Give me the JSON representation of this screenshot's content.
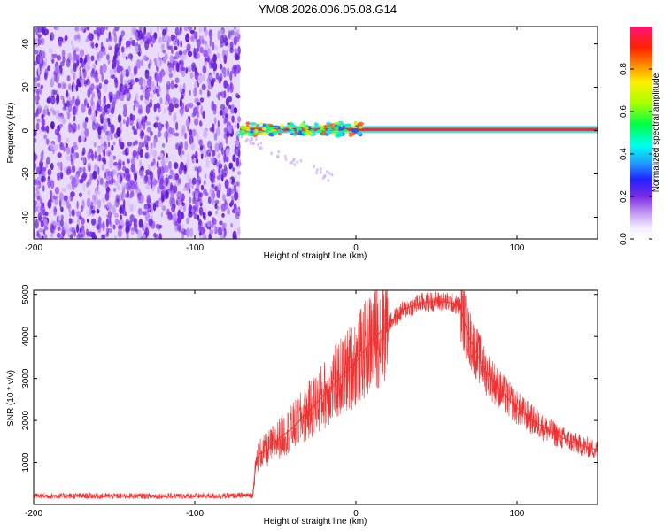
{
  "title": "YM08.2026.006.05.08.G14",
  "chart_data": [
    {
      "type": "heatmap",
      "xlabel": "Height of straight line (km)",
      "ylabel": "Frequency (Hz)",
      "xlim": [
        -200,
        150
      ],
      "ylim": [
        -50,
        48
      ],
      "xticks": [
        -200,
        -100,
        0,
        100
      ],
      "yticks": [
        -40,
        -20,
        0,
        20,
        40
      ],
      "noise_region_x": [
        -200,
        -72
      ],
      "signal_line": {
        "x": [
          -72,
          150
        ],
        "frequency": 0.5,
        "peak_normalized_amplitude": 1.0
      },
      "colorbar": {
        "label": "Normalized spectral amplitude",
        "range": [
          0,
          1
        ],
        "ticks": [
          0.0,
          0.2,
          0.4,
          0.6,
          0.8
        ]
      },
      "grid": false
    },
    {
      "type": "line",
      "xlabel": "Height of straight line (km)",
      "ylabel": "SNR (10 * v/v)",
      "xlim": [
        -200,
        150
      ],
      "ylim": [
        0,
        5100
      ],
      "xticks": [
        -200,
        -100,
        0,
        100
      ],
      "yticks": [
        1000,
        2000,
        3000,
        4000,
        5000
      ],
      "color": "#ee3333",
      "grid": false,
      "series": [
        {
          "x": [
            -200,
            -180,
            -160,
            -140,
            -120,
            -100,
            -80,
            -64,
            -62,
            -60,
            -55,
            -50,
            -40,
            -30,
            -20,
            -10,
            0,
            10,
            20,
            30,
            40,
            50,
            60,
            65,
            70,
            80,
            90,
            100,
            110,
            120,
            130,
            140,
            150
          ],
          "values": [
            200,
            200,
            200,
            200,
            200,
            200,
            200,
            220,
            1000,
            1200,
            1300,
            1500,
            1800,
            2200,
            2600,
            3000,
            3400,
            3900,
            4300,
            4650,
            4800,
            4850,
            4800,
            4700,
            4000,
            3200,
            2700,
            2300,
            2000,
            1750,
            1550,
            1400,
            1300
          ]
        }
      ]
    }
  ]
}
